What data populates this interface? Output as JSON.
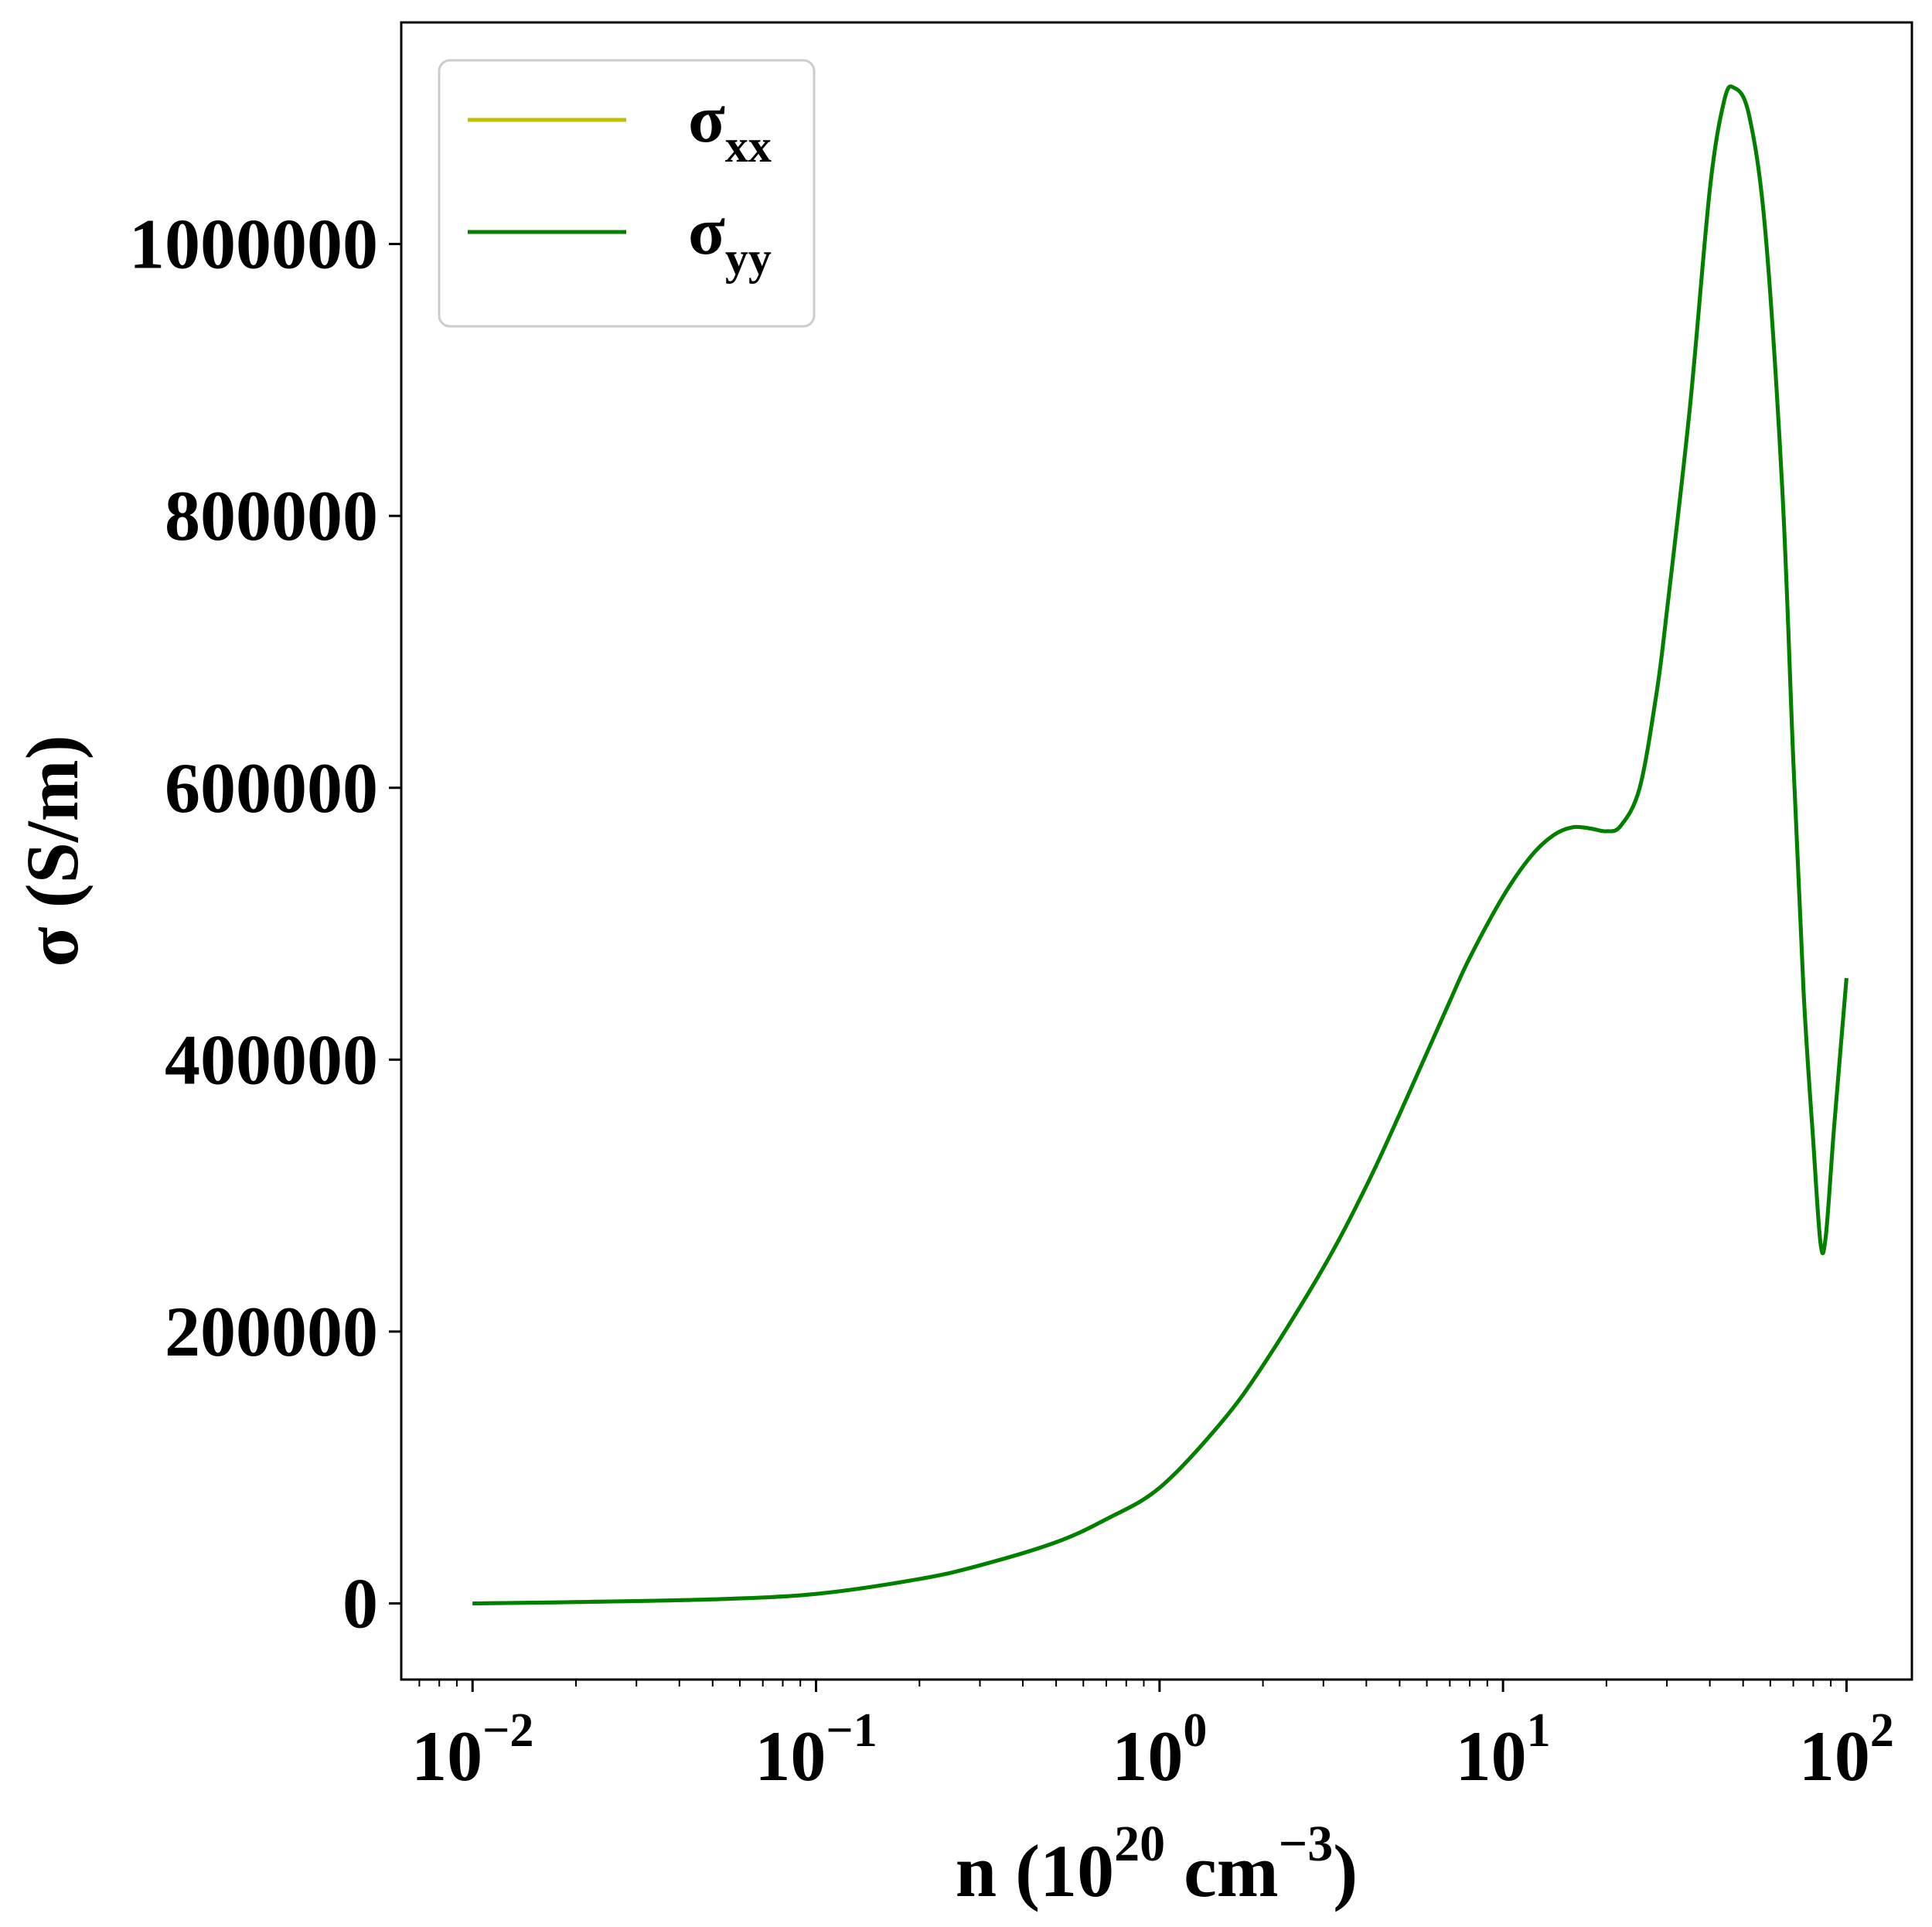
{
  "chart_data": {
    "type": "line",
    "xlabel": {
      "base": "n (10",
      "sup1": "20",
      "mid": " cm",
      "sup2": "−3",
      "end": ")"
    },
    "ylabel": "σ (S/m)",
    "x_scale": "log",
    "xlim": [
      0.0062,
      155
    ],
    "ylim": [
      -56000,
      1163000
    ],
    "x_ticks": [
      {
        "value": 0.01,
        "base": "10",
        "exp": "−2"
      },
      {
        "value": 0.1,
        "base": "10",
        "exp": "−1"
      },
      {
        "value": 1,
        "base": "10",
        "exp": "0"
      },
      {
        "value": 10,
        "base": "10",
        "exp": "1"
      },
      {
        "value": 100,
        "base": "10",
        "exp": "2"
      }
    ],
    "y_ticks": [
      {
        "value": 0,
        "label": "0"
      },
      {
        "value": 200000,
        "label": "200000"
      },
      {
        "value": 400000,
        "label": "400000"
      },
      {
        "value": 600000,
        "label": "600000"
      },
      {
        "value": 800000,
        "label": "800000"
      },
      {
        "value": 1000000,
        "label": "1000000"
      }
    ],
    "grid": false,
    "legend": {
      "position": "top-left",
      "entries": [
        {
          "symbol": "σ",
          "sub": "xx",
          "color": "#bfbf00"
        },
        {
          "symbol": "σ",
          "sub": "yy",
          "color": "#008000"
        }
      ]
    },
    "series": [
      {
        "name": "σxx",
        "color": "#bfbf00",
        "x": [
          0.01,
          0.02,
          0.05,
          0.1,
          0.2,
          0.3,
          0.5,
          0.7,
          1.0,
          1.5,
          2.0,
          3.0,
          4.0,
          5.0,
          6.0,
          7.0,
          8.0,
          10.0,
          12.0,
          14.0,
          16.0,
          18.0,
          20.0,
          22.0,
          25.0,
          28.0,
          30.0,
          35.0,
          40.0,
          44.0,
          47.0,
          52.0,
          58.0,
          65.0,
          70.0,
          75.0,
          80.0,
          84.0,
          87.0,
          92.0,
          100.0
        ],
        "y": [
          0,
          1000,
          3000,
          7000,
          18000,
          28000,
          45000,
          62000,
          85000,
          132000,
          175000,
          247000,
          307000,
          360000,
          405000,
          443000,
          475000,
          520000,
          549000,
          565000,
          571000,
          570000,
          568000,
          572000,
          600000,
          670000,
          730000,
          880000,
          1040000,
          1105000,
          1115000,
          1095000,
          1010000,
          820000,
          620000,
          450000,
          340000,
          265000,
          270000,
          350000,
          460000
        ]
      },
      {
        "name": "σyy",
        "color": "#008000",
        "x": [
          0.01,
          0.02,
          0.05,
          0.1,
          0.2,
          0.3,
          0.5,
          0.7,
          1.0,
          1.5,
          2.0,
          3.0,
          4.0,
          5.0,
          6.0,
          7.0,
          8.0,
          10.0,
          12.0,
          14.0,
          16.0,
          18.0,
          20.0,
          22.0,
          25.0,
          28.0,
          30.0,
          35.0,
          40.0,
          44.0,
          47.0,
          52.0,
          58.0,
          65.0,
          70.0,
          75.0,
          80.0,
          84.0,
          87.0,
          92.0,
          100.0
        ],
        "y": [
          0,
          1000,
          3000,
          7000,
          18000,
          28000,
          45000,
          62000,
          85000,
          132000,
          175000,
          247000,
          307000,
          360000,
          405000,
          443000,
          475000,
          520000,
          549000,
          565000,
          571000,
          570000,
          568000,
          572000,
          600000,
          670000,
          730000,
          880000,
          1040000,
          1105000,
          1115000,
          1095000,
          1010000,
          820000,
          620000,
          450000,
          340000,
          265000,
          270000,
          350000,
          460000
        ]
      }
    ]
  }
}
